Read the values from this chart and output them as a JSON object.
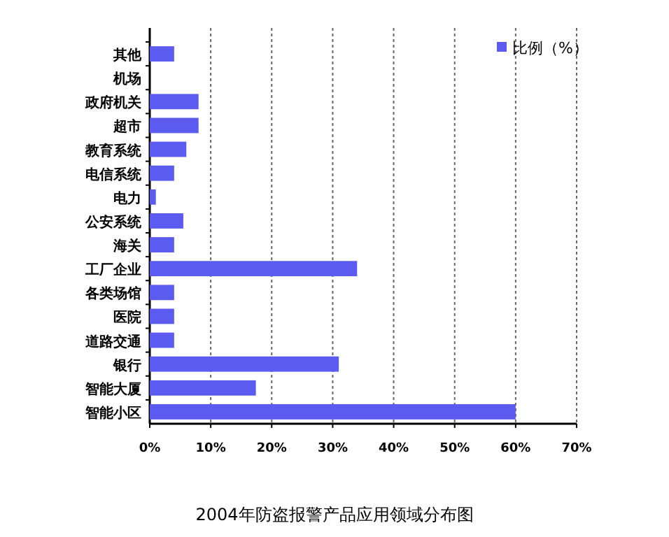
{
  "chart_data": {
    "type": "bar",
    "orientation": "horizontal",
    "title": "2004年防盗报警产品应用领域分布图",
    "categories": [
      "其他",
      "机场",
      "政府机关",
      "超市",
      "教育系统",
      "电信系统",
      "电力",
      "公安系统",
      "海关",
      "工厂企业",
      "各类场馆",
      "医院",
      "道路交通",
      "银行",
      "智能大厦",
      "智能小区"
    ],
    "series": [
      {
        "name": "比例（%）",
        "color": "#5b5bf0",
        "values": [
          4,
          0,
          8,
          8,
          6,
          4,
          1,
          5.5,
          4,
          34,
          4,
          4,
          4,
          31,
          17.4,
          60
        ]
      }
    ],
    "xlim": [
      0,
      70
    ],
    "xticks": [
      {
        "value": 0,
        "label": "0%"
      },
      {
        "value": 10,
        "label": "10%"
      },
      {
        "value": 20,
        "label": "20%"
      },
      {
        "value": 30,
        "label": "30%"
      },
      {
        "value": 40,
        "label": "40%"
      },
      {
        "value": 50,
        "label": "50%"
      },
      {
        "value": 60,
        "label": "60%"
      },
      {
        "value": 70,
        "label": "70%"
      }
    ],
    "grid": "x",
    "legend": "top right"
  }
}
